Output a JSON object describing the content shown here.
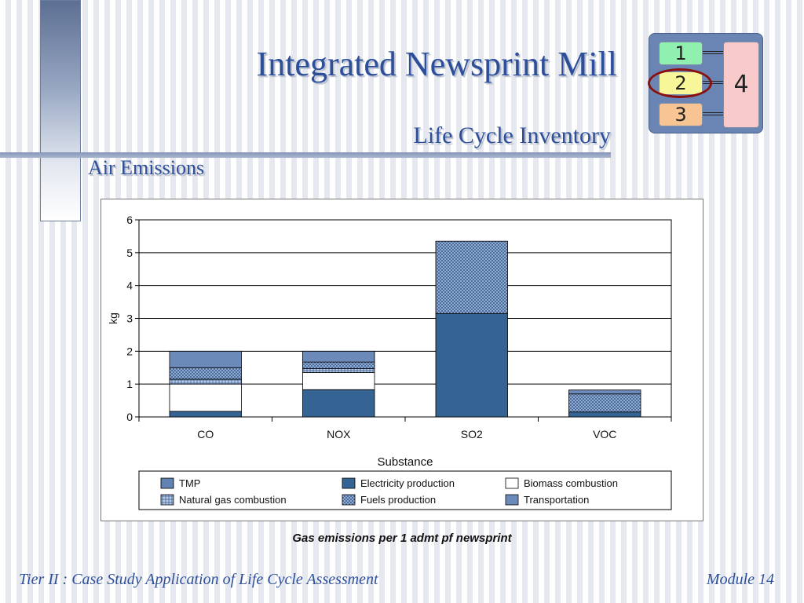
{
  "slide": {
    "title": "Integrated Newsprint Mill",
    "subtitle": "Life Cycle Inventory",
    "section": "Air Emissions",
    "caption": "Gas emissions per 1 admt pf newsprint",
    "footer_left": "Tier II : Case Study Application of Life Cycle Assessment",
    "footer_right": "Module 14"
  },
  "module_icon": {
    "boxes": [
      "1",
      "2",
      "3",
      "4"
    ],
    "colors": {
      "box1": "#8ff0b0",
      "box2": "#f7f79a",
      "box3": "#f9c493",
      "box4": "#f9caca",
      "ring": "#8a1010"
    }
  },
  "chart_data": {
    "type": "bar",
    "stacked": true,
    "categories": [
      "CO",
      "NOX",
      "SO2",
      "VOC"
    ],
    "xlabel": "Substance",
    "ylabel": "kg",
    "ylim": [
      0,
      6
    ],
    "yticks": [
      0,
      1,
      2,
      3,
      4,
      5,
      6
    ],
    "grid": true,
    "legend_position": "bottom",
    "series": [
      {
        "name": "TMP",
        "values": [
          0,
          0,
          0,
          0
        ]
      },
      {
        "name": "Electricity production",
        "values": [
          0.17,
          0.83,
          3.15,
          0.15
        ]
      },
      {
        "name": "Biomass combustion",
        "values": [
          0.83,
          0.52,
          0,
          0
        ]
      },
      {
        "name": "Natural gas combustion",
        "values": [
          0.15,
          0.12,
          0,
          0
        ]
      },
      {
        "name": "Fuels production",
        "values": [
          0.35,
          0.2,
          2.2,
          0.55
        ]
      },
      {
        "name": "Transportation",
        "values": [
          0.5,
          0.33,
          0,
          0.12
        ]
      }
    ],
    "colors": {
      "TMP": "#7a9ac8",
      "Electricity production": "#346394",
      "Biomass combustion": "#ffffff",
      "Natural gas combustion": "#b9cbe6",
      "Fuels production": "#a3bbdd",
      "Transportation": "#8aa7d2"
    }
  }
}
